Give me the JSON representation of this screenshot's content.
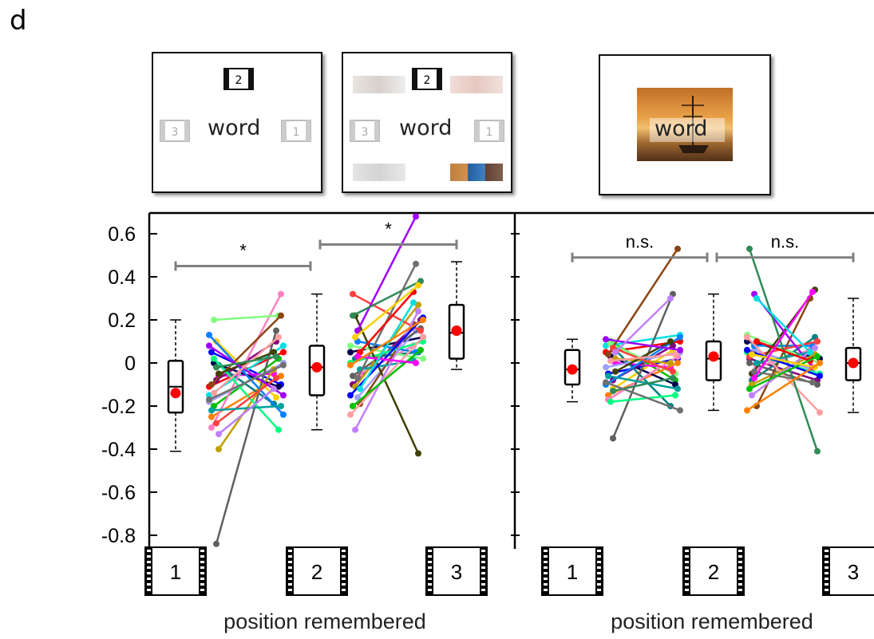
{
  "panel_letter": "d",
  "example_screens": [
    {
      "word": "word",
      "frame_labels": [
        "2",
        "3",
        "1"
      ]
    },
    {
      "word": "word",
      "frame_labels": [
        "2",
        "3",
        "1"
      ]
    },
    {
      "word": "word"
    }
  ],
  "colors": {
    "series": [
      "#ff0000",
      "#0000ff",
      "#00c000",
      "#ffd000",
      "#ff00ff",
      "#00e0e0",
      "#ff8000",
      "#000050",
      "#800080",
      "#008080",
      "#a0a0ff",
      "#ff80c0",
      "#80ff80",
      "#606060",
      "#c0a000",
      "#0080ff",
      "#8b4513",
      "#00ff80",
      "#ff4040",
      "#404000",
      "#a000ff",
      "#00a0a0",
      "#ffa0a0",
      "#2e8b57",
      "#c080ff",
      "#707070"
    ],
    "mean_marker": "#ff0000",
    "significance_bar": "#808080"
  },
  "chart_data": [
    {
      "type": "scatter",
      "title": "",
      "xlabel": "position remembered",
      "ylabel": "",
      "categories": [
        "1",
        "2",
        "3"
      ],
      "ylim": [
        -0.85,
        0.7
      ],
      "yticks": [
        "0.6",
        "0.4",
        "0.2",
        "0",
        "-0.2",
        "-0.4",
        "-0.6",
        "-0.8"
      ],
      "ytick_values": [
        0.6,
        0.4,
        0.2,
        0,
        -0.2,
        -0.4,
        -0.6,
        -0.8
      ],
      "boxes": [
        {
          "category": "1",
          "q1": -0.23,
          "median": -0.11,
          "q3": 0.01,
          "whisker_low": -0.41,
          "whisker_high": 0.2,
          "mean": -0.14
        },
        {
          "category": "2",
          "q1": -0.15,
          "median": -0.02,
          "q3": 0.08,
          "whisker_low": -0.31,
          "whisker_high": 0.32,
          "mean": -0.02
        },
        {
          "category": "3",
          "q1": 0.02,
          "median": 0.14,
          "q3": 0.27,
          "whisker_low": -0.03,
          "whisker_high": 0.47,
          "mean": 0.15
        }
      ],
      "pair_12": [
        [
          -0.11,
          0.05
        ],
        [
          0.05,
          -0.1
        ],
        [
          -0.2,
          0.02
        ],
        [
          0.1,
          -0.16
        ],
        [
          -0.06,
          -0.05
        ],
        [
          -0.15,
          0.08
        ],
        [
          -0.25,
          -0.06
        ],
        [
          0.0,
          -0.11
        ],
        [
          -0.08,
          0.1
        ],
        [
          -0.01,
          -0.19
        ],
        [
          -0.18,
          0.0
        ],
        [
          -0.3,
          0.32
        ],
        [
          0.2,
          0.22
        ],
        [
          -0.84,
          0.15
        ],
        [
          -0.4,
          -0.03
        ],
        [
          0.13,
          -0.24
        ],
        [
          -0.1,
          0.22
        ],
        [
          0.02,
          -0.31
        ],
        [
          -0.28,
          -0.07
        ],
        [
          -0.05,
          0.05
        ],
        [
          0.08,
          -0.15
        ],
        [
          -0.22,
          -0.2
        ],
        [
          -0.14,
          0.12
        ],
        [
          -0.02,
          0.03
        ],
        [
          -0.33,
          -0.12
        ],
        [
          -0.17,
          -0.01
        ]
      ],
      "pair_23": [
        [
          0.05,
          0.12
        ],
        [
          -0.1,
          0.2
        ],
        [
          0.02,
          0.05
        ],
        [
          -0.16,
          0.15
        ],
        [
          -0.05,
          0.08
        ],
        [
          0.08,
          0.02
        ],
        [
          -0.06,
          0.16
        ],
        [
          -0.11,
          0.27
        ],
        [
          0.1,
          0.05
        ],
        [
          -0.19,
          0.18
        ],
        [
          0.0,
          0.1
        ],
        [
          0.32,
          0.15
        ],
        [
          0.22,
          -0.42
        ],
        [
          0.15,
          0.68
        ],
        [
          -0.03,
          0.01
        ],
        [
          -0.24,
          0.12
        ],
        [
          0.22,
          0.38
        ],
        [
          -0.31,
          0.24
        ],
        [
          -0.07,
          0.46
        ],
        [
          0.05,
          0.33
        ],
        [
          -0.15,
          0.21
        ],
        [
          -0.2,
          0.06
        ],
        [
          0.12,
          0.36
        ],
        [
          0.03,
          0.0
        ],
        [
          -0.12,
          0.28
        ],
        [
          -0.01,
          0.2
        ]
      ],
      "significance": [
        {
          "from": "1",
          "to": "2",
          "y": 0.45,
          "label": "*"
        },
        {
          "from": "2",
          "to": "3",
          "y": 0.55,
          "label": "*"
        }
      ]
    },
    {
      "type": "scatter",
      "title": "",
      "xlabel": "position remembered",
      "ylabel": "",
      "categories": [
        "1",
        "2",
        "3"
      ],
      "ylim": [
        -0.85,
        0.7
      ],
      "boxes": [
        {
          "category": "1",
          "q1": -0.1,
          "median": -0.03,
          "q3": 0.06,
          "whisker_low": -0.18,
          "whisker_high": 0.11,
          "mean": -0.03
        },
        {
          "category": "2",
          "q1": -0.08,
          "median": 0.02,
          "q3": 0.1,
          "whisker_low": -0.22,
          "whisker_high": 0.32,
          "mean": 0.03
        },
        {
          "category": "3",
          "q1": -0.08,
          "median": 0.0,
          "q3": 0.07,
          "whisker_low": -0.23,
          "whisker_high": 0.3,
          "mean": 0.0
        }
      ],
      "pair_12": [
        [
          0.05,
          0.1
        ],
        [
          -0.05,
          0.02
        ],
        [
          0.1,
          -0.08
        ],
        [
          -0.12,
          0.06
        ],
        [
          0.0,
          -0.02
        ],
        [
          0.08,
          0.13
        ],
        [
          -0.15,
          0.0
        ],
        [
          0.03,
          -0.1
        ],
        [
          -0.08,
          0.08
        ],
        [
          0.06,
          -0.2
        ],
        [
          -0.02,
          0.05
        ],
        [
          -0.17,
          0.03
        ],
        [
          0.09,
          -0.05
        ],
        [
          -0.35,
          0.32
        ],
        [
          0.02,
          0.0
        ],
        [
          -0.1,
          0.12
        ],
        [
          0.04,
          0.53
        ],
        [
          -0.18,
          -0.15
        ],
        [
          0.07,
          -0.04
        ],
        [
          -0.04,
          0.1
        ],
        [
          0.11,
          0.06
        ],
        [
          -0.06,
          -0.12
        ],
        [
          0.01,
          0.04
        ],
        [
          -0.13,
          -0.07
        ],
        [
          0.05,
          0.3
        ],
        [
          -0.09,
          -0.22
        ]
      ],
      "pair_23": [
        [
          0.1,
          0.02
        ],
        [
          0.02,
          -0.08
        ],
        [
          -0.08,
          0.12
        ],
        [
          0.06,
          -0.03
        ],
        [
          -0.02,
          0.06
        ],
        [
          0.13,
          0.0
        ],
        [
          0.0,
          -0.1
        ],
        [
          -0.1,
          0.04
        ],
        [
          0.08,
          0.08
        ],
        [
          -0.2,
          0.3
        ],
        [
          0.05,
          -0.05
        ],
        [
          0.03,
          0.1
        ],
        [
          -0.05,
          0.34
        ],
        [
          0.32,
          -0.02
        ],
        [
          0.0,
          0.05
        ],
        [
          0.12,
          -0.23
        ],
        [
          0.53,
          -0.41
        ],
        [
          -0.15,
          0.07
        ],
        [
          -0.04,
          -0.09
        ],
        [
          0.1,
          0.01
        ],
        [
          0.06,
          -0.06
        ],
        [
          -0.12,
          0.03
        ],
        [
          0.04,
          -0.02
        ],
        [
          -0.07,
          0.33
        ],
        [
          0.3,
          0.05
        ],
        [
          -0.22,
          0.0
        ]
      ],
      "significance": [
        {
          "from": "1",
          "to": "2",
          "y": 0.49,
          "label": "n.s."
        },
        {
          "from": "2",
          "to": "3",
          "y": 0.49,
          "label": "n.s."
        }
      ]
    }
  ]
}
